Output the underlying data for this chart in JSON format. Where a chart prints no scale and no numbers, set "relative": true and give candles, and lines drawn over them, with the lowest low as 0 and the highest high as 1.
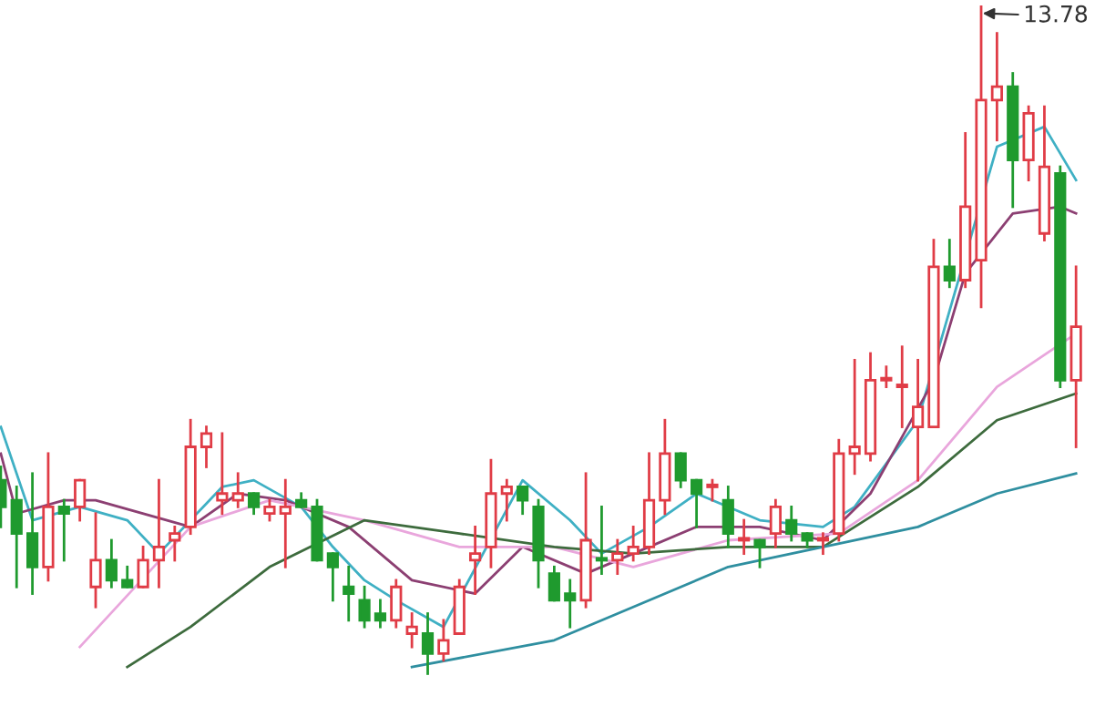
{
  "chart_data": {
    "type": "candlestick",
    "relative": true,
    "categories": [
      null,
      null,
      null,
      null,
      null,
      null,
      null,
      null,
      null,
      null,
      null,
      null,
      null,
      null,
      null,
      null,
      null,
      null,
      null,
      null,
      null,
      null,
      null,
      null,
      null,
      null,
      null,
      null,
      null,
      null,
      null,
      null,
      null,
      null,
      null,
      null,
      null,
      null,
      null,
      null,
      null,
      null,
      null,
      null,
      null,
      null,
      null,
      null,
      null,
      null,
      null,
      null,
      null,
      null,
      null,
      null,
      null,
      null,
      null,
      null,
      null,
      null,
      null,
      null,
      null,
      null,
      null,
      null,
      null
    ],
    "ohlc": [
      [
        0.29,
        0.31,
        0.22,
        0.25
      ],
      [
        0.26,
        0.28,
        0.13,
        0.21
      ],
      [
        0.21,
        0.3,
        0.12,
        0.16
      ],
      [
        0.16,
        0.33,
        0.14,
        0.25
      ],
      [
        0.25,
        0.26,
        0.17,
        0.24
      ],
      [
        0.25,
        0.29,
        0.23,
        0.29
      ],
      [
        0.13,
        0.24,
        0.1,
        0.17
      ],
      [
        0.17,
        0.2,
        0.13,
        0.14
      ],
      [
        0.14,
        0.16,
        0.13,
        0.13
      ],
      [
        0.13,
        0.19,
        0.13,
        0.17
      ],
      [
        0.17,
        0.29,
        0.13,
        0.19
      ],
      [
        0.2,
        0.22,
        0.17,
        0.21
      ],
      [
        0.22,
        0.38,
        0.21,
        0.34
      ],
      [
        0.34,
        0.37,
        0.31,
        0.36
      ],
      [
        0.26,
        0.36,
        0.24,
        0.27
      ],
      [
        0.26,
        0.3,
        0.25,
        0.27
      ],
      [
        0.27,
        0.27,
        0.24,
        0.25
      ],
      [
        0.24,
        0.26,
        0.23,
        0.25
      ],
      [
        0.24,
        0.29,
        0.16,
        0.25
      ],
      [
        0.26,
        0.27,
        0.25,
        0.25
      ],
      [
        0.25,
        0.26,
        0.17,
        0.17
      ],
      [
        0.18,
        0.18,
        0.11,
        0.16
      ],
      [
        0.13,
        0.16,
        0.08,
        0.12
      ],
      [
        0.11,
        0.13,
        0.07,
        0.08
      ],
      [
        0.09,
        0.11,
        0.07,
        0.08
      ],
      [
        0.08,
        0.14,
        0.07,
        0.13
      ],
      [
        0.06,
        0.09,
        0.04,
        0.07
      ],
      [
        0.06,
        0.09,
        0.0,
        0.03
      ],
      [
        0.03,
        0.08,
        0.02,
        0.05
      ],
      [
        0.06,
        0.14,
        0.06,
        0.13
      ],
      [
        0.17,
        0.22,
        0.12,
        0.18
      ],
      [
        0.19,
        0.32,
        0.16,
        0.27
      ],
      [
        0.27,
        0.29,
        0.23,
        0.28
      ],
      [
        0.28,
        0.28,
        0.24,
        0.26
      ],
      [
        0.25,
        0.26,
        0.13,
        0.17
      ],
      [
        0.15,
        0.16,
        0.11,
        0.11
      ],
      [
        0.12,
        0.14,
        0.07,
        0.11
      ],
      [
        0.11,
        0.3,
        0.1,
        0.2
      ],
      [
        0.17,
        0.25,
        0.15,
        0.17
      ],
      [
        0.17,
        0.2,
        0.15,
        0.18
      ],
      [
        0.18,
        0.22,
        0.17,
        0.19
      ],
      [
        0.19,
        0.33,
        0.18,
        0.26
      ],
      [
        0.26,
        0.38,
        0.24,
        0.33
      ],
      [
        0.33,
        0.33,
        0.28,
        0.29
      ],
      [
        0.29,
        0.29,
        0.22,
        0.27
      ],
      [
        0.28,
        0.29,
        0.26,
        0.28
      ],
      [
        0.26,
        0.28,
        0.19,
        0.21
      ],
      [
        0.2,
        0.23,
        0.18,
        0.2
      ],
      [
        0.2,
        0.2,
        0.16,
        0.19
      ],
      [
        0.21,
        0.26,
        0.19,
        0.25
      ],
      [
        0.23,
        0.25,
        0.2,
        0.21
      ],
      [
        0.21,
        0.21,
        0.19,
        0.2
      ],
      [
        0.2,
        0.21,
        0.18,
        0.2
      ],
      [
        0.21,
        0.35,
        0.2,
        0.33
      ],
      [
        0.33,
        0.47,
        0.3,
        0.34
      ],
      [
        0.33,
        0.48,
        0.32,
        0.44
      ],
      [
        0.44,
        0.46,
        0.43,
        0.44
      ],
      [
        0.43,
        0.49,
        0.37,
        0.43
      ],
      [
        0.37,
        0.47,
        0.29,
        0.4
      ],
      [
        0.37,
        0.65,
        0.37,
        0.61
      ],
      [
        0.61,
        0.65,
        0.58,
        0.59
      ],
      [
        0.59,
        0.81,
        0.58,
        0.7
      ],
      [
        0.62,
        1,
        0.55,
        0.86
      ],
      [
        0.86,
        0.96,
        0.8,
        0.88
      ],
      [
        0.88,
        0.9,
        0.7,
        0.77
      ],
      [
        0.77,
        0.85,
        0.74,
        0.84
      ],
      [
        0.66,
        0.85,
        0.65,
        0.76
      ],
      [
        0.75,
        0.76,
        0.43,
        0.44
      ],
      [
        0.44,
        0.61,
        0.34,
        0.52
      ]
    ],
    "colors": [
      "#1f9a2e",
      "#1f9a2e",
      "#1f9a2e",
      "#e03c46",
      "#1f9a2e",
      "#e03c46",
      "#e03c46",
      "#1f9a2e",
      "#1f9a2e",
      "#e03c46",
      "#e03c46",
      "#e03c46",
      "#e03c46",
      "#e03c46",
      "#e03c46",
      "#e03c46",
      "#1f9a2e",
      "#e03c46",
      "#e03c46",
      "#1f9a2e",
      "#1f9a2e",
      "#1f9a2e",
      "#1f9a2e",
      "#1f9a2e",
      "#1f9a2e",
      "#e03c46",
      "#e03c46",
      "#1f9a2e",
      "#e03c46",
      "#e03c46",
      "#e03c46",
      "#e03c46",
      "#e03c46",
      "#1f9a2e",
      "#1f9a2e",
      "#1f9a2e",
      "#1f9a2e",
      "#e03c46",
      "#1f9a2e",
      "#e03c46",
      "#e03c46",
      "#e03c46",
      "#e03c46",
      "#1f9a2e",
      "#1f9a2e",
      "#e03c46",
      "#1f9a2e",
      "#e03c46",
      "#1f9a2e",
      "#e03c46",
      "#1f9a2e",
      "#1f9a2e",
      "#e03c46",
      "#e03c46",
      "#e03c46",
      "#e03c46",
      "#e03c46",
      "#e03c46",
      "#e03c46",
      "#e03c46",
      "#1f9a2e",
      "#e03c46",
      "#e03c46",
      "#e03c46",
      "#1f9a2e",
      "#e03c46",
      "#e03c46",
      "#1f9a2e",
      "#e03c46"
    ],
    "series": [
      {
        "type": "line",
        "color": "#3fb0c4",
        "values": [
          0.37,
          null,
          0.23,
          null,
          null,
          0.25,
          null,
          null,
          0.23,
          null,
          0.18,
          null,
          null,
          null,
          0.28,
          null,
          0.29,
          null,
          null,
          0.25,
          null,
          0.19,
          null,
          0.14,
          null,
          0.11,
          null,
          null,
          0.07,
          null,
          null,
          null,
          null,
          0.29,
          null,
          null,
          0.23,
          null,
          0.18,
          null,
          null,
          0.22,
          null,
          null,
          0.27,
          null,
          null,
          null,
          0.23,
          null,
          null,
          null,
          0.22,
          null,
          0.25,
          null,
          null,
          null,
          0.38,
          null,
          null,
          null,
          null,
          0.79,
          null,
          null,
          0.82,
          null,
          0.74
        ]
      },
      {
        "type": "line",
        "color": "#8c3f72",
        "values": [
          0.33,
          0.24,
          null,
          null,
          0.26,
          null,
          0.26,
          null,
          null,
          null,
          null,
          null,
          0.22,
          null,
          null,
          0.27,
          null,
          null,
          0.26,
          null,
          null,
          null,
          0.22,
          null,
          null,
          null,
          0.14,
          null,
          null,
          null,
          0.12,
          null,
          null,
          0.19,
          null,
          null,
          null,
          0.15,
          null,
          null,
          0.18,
          null,
          null,
          null,
          0.22,
          null,
          null,
          null,
          0.22,
          null,
          null,
          null,
          0.2,
          null,
          null,
          0.27,
          null,
          null,
          null,
          0.44,
          null,
          0.6,
          null,
          null,
          0.69,
          null,
          null,
          0.7,
          0.69
        ]
      },
      {
        "type": "line",
        "color": "#e9a6dc",
        "values": [
          null,
          null,
          null,
          null,
          null,
          0.04,
          null,
          null,
          null,
          null,
          null,
          null,
          0.22,
          null,
          null,
          null,
          null,
          0.26,
          null,
          null,
          null,
          null,
          null,
          0.23,
          null,
          null,
          null,
          null,
          null,
          0.19,
          null,
          null,
          null,
          null,
          null,
          0.19,
          null,
          null,
          null,
          null,
          0.16,
          null,
          null,
          null,
          null,
          null,
          0.2,
          null,
          null,
          null,
          null,
          null,
          null,
          0.21,
          null,
          null,
          null,
          null,
          0.29,
          null,
          null,
          null,
          null,
          0.43,
          null,
          null,
          null,
          null,
          0.51
        ]
      },
      {
        "type": "line",
        "color": "#3d6b3d",
        "values": [
          null,
          null,
          null,
          null,
          null,
          null,
          null,
          null,
          0.01,
          null,
          null,
          null,
          0.07,
          null,
          null,
          null,
          null,
          0.16,
          null,
          null,
          null,
          null,
          null,
          0.23,
          null,
          null,
          null,
          null,
          null,
          0.21,
          null,
          null,
          null,
          null,
          null,
          0.19,
          null,
          null,
          null,
          null,
          0.18,
          null,
          null,
          null,
          null,
          null,
          0.19,
          null,
          null,
          null,
          null,
          null,
          0.19,
          null,
          null,
          null,
          null,
          null,
          0.28,
          null,
          null,
          null,
          null,
          0.38,
          null,
          null,
          null,
          null,
          0.42
        ]
      },
      {
        "type": "line",
        "color": "#2f8fa0",
        "values": [
          null,
          null,
          null,
          null,
          null,
          null,
          null,
          null,
          null,
          null,
          null,
          null,
          null,
          null,
          null,
          null,
          null,
          null,
          null,
          null,
          null,
          null,
          null,
          null,
          null,
          null,
          0.01,
          null,
          null,
          null,
          null,
          null,
          null,
          null,
          null,
          0.05,
          null,
          null,
          null,
          null,
          0.1,
          null,
          null,
          null,
          null,
          null,
          0.16,
          null,
          null,
          null,
          null,
          null,
          0.19,
          null,
          null,
          null,
          null,
          null,
          0.22,
          null,
          null,
          null,
          null,
          0.27,
          null,
          null,
          null,
          null,
          0.3
        ]
      }
    ],
    "annotations": [
      "13.78"
    ]
  }
}
